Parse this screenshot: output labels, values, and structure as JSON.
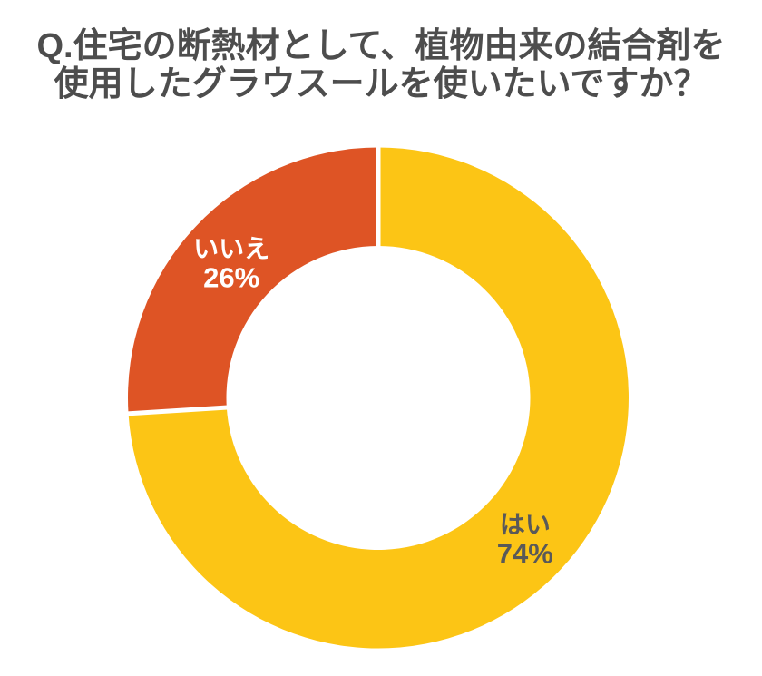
{
  "title": {
    "line1": "Q.住宅の断熱材として、植物由来の結合剤を",
    "line2": "使用したグラウスールを使いたいですか？"
  },
  "chart_data": {
    "type": "pie",
    "subtype": "donut",
    "title": "Q.住宅の断熱材として、植物由来の結合剤を使用したグラウスールを使いたいですか？",
    "start_angle_deg": 0,
    "direction": "clockwise",
    "inner_radius_ratio": 0.61,
    "separator_color": "#ffffff",
    "legend": "none",
    "slices": [
      {
        "label": "はい",
        "value": 74,
        "value_label": "74%",
        "color": "#fcc515",
        "label_color": "#595959"
      },
      {
        "label": "いいえ",
        "value": 26,
        "value_label": "26%",
        "color": "#de5425",
        "label_color": "#ffffff"
      }
    ]
  }
}
